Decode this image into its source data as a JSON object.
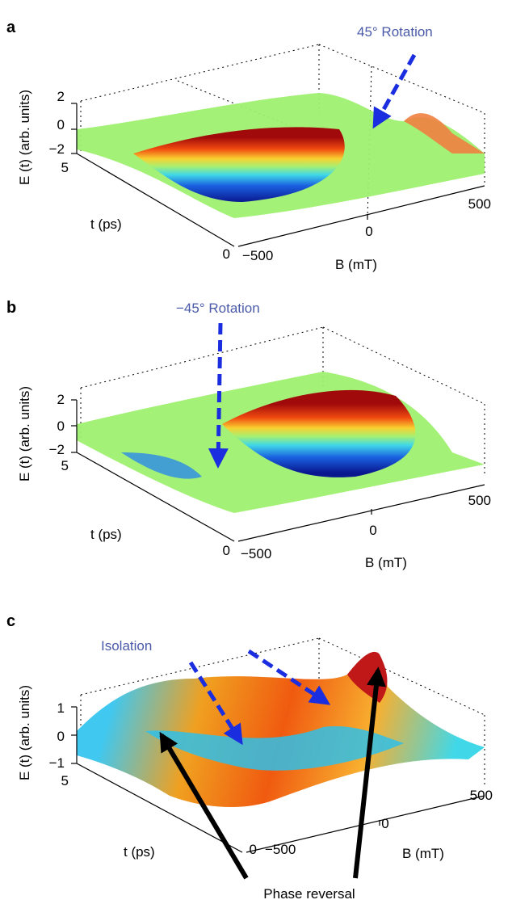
{
  "chart_data": [
    {
      "panel": "a",
      "type": "surface",
      "zlabel": "E (t) (arb. units)",
      "xlabel": "B (mT)",
      "ylabel": "t (ps)",
      "x_ticks": [
        "−500",
        "0",
        "500"
      ],
      "y_ticks": [
        "0",
        "5"
      ],
      "z_ticks": [
        "2",
        "0",
        "−2"
      ],
      "xlim": [
        -500,
        500
      ],
      "ylim": [
        0,
        5
      ],
      "zlim": [
        -2,
        2
      ],
      "annotations": [
        "45° Rotation"
      ],
      "colors": {
        "high": "#b01010",
        "low": "#0a1890",
        "zero": "#9ff070"
      }
    },
    {
      "panel": "b",
      "type": "surface",
      "zlabel": "E (t) (arb. units)",
      "xlabel": "B (mT)",
      "ylabel": "t (ps)",
      "x_ticks": [
        "−500",
        "0",
        "500"
      ],
      "y_ticks": [
        "0",
        "5"
      ],
      "z_ticks": [
        "2",
        "0",
        "−2"
      ],
      "xlim": [
        -500,
        500
      ],
      "ylim": [
        0,
        5
      ],
      "zlim": [
        -2,
        2
      ],
      "annotations": [
        "−45° Rotation"
      ],
      "colors": {
        "high": "#b01010",
        "low": "#0a1890",
        "zero": "#9ff070"
      }
    },
    {
      "panel": "c",
      "type": "surface",
      "zlabel": "E (t) (arb. units)",
      "xlabel": "B (mT)",
      "ylabel": "t (ps)",
      "x_ticks": [
        "−500",
        "0",
        "500"
      ],
      "y_ticks": [
        "0",
        "5"
      ],
      "z_ticks": [
        "1",
        "0",
        "−1"
      ],
      "xlim": [
        -500,
        500
      ],
      "ylim": [
        0,
        5
      ],
      "zlim": [
        -1,
        1
      ],
      "annotations": [
        "Isolation",
        "Phase reversal"
      ],
      "colors": {
        "high": "#b01010",
        "low": "#0a1890",
        "zero": "#9ff070"
      }
    }
  ]
}
